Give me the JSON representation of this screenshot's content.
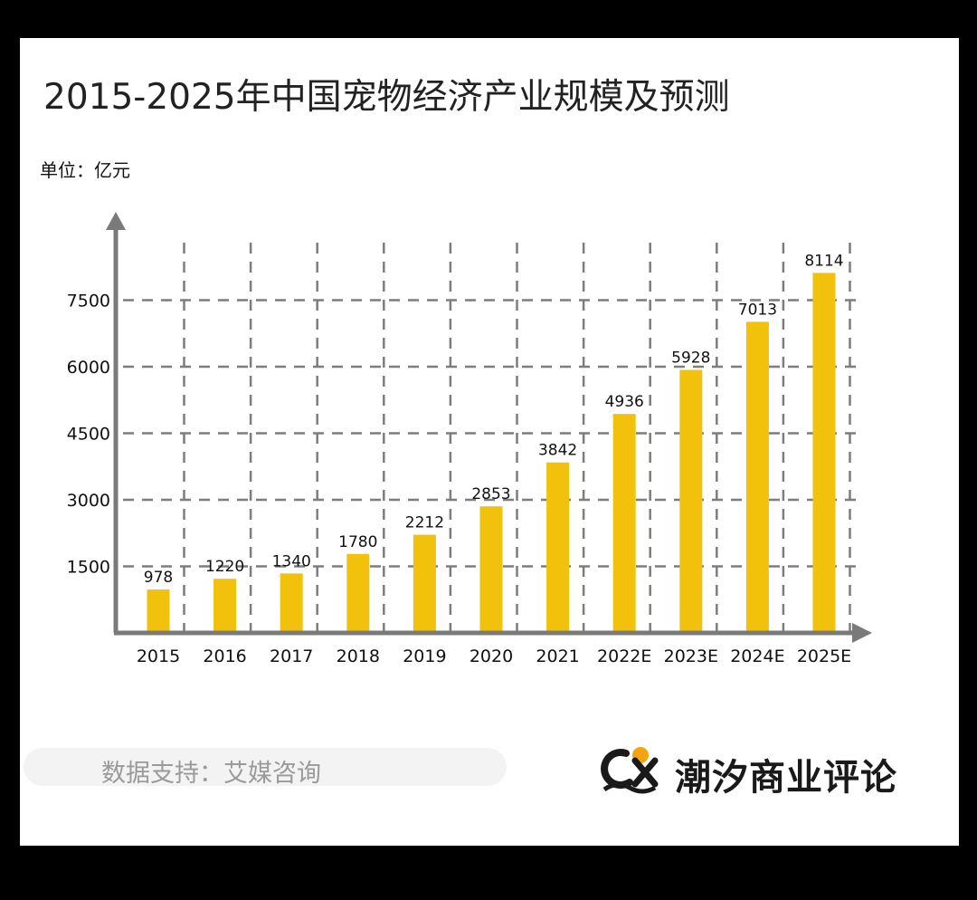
{
  "title": "2015-2025年中国宠物经济产业规模及预测",
  "unit_label": "单位：亿元",
  "source": "数据支持：艾媒咨询",
  "brand": {
    "initials": "CX",
    "name": "潮汐商业评论"
  },
  "colors": {
    "bar": "#f2c10c",
    "axis": "#7a7a7a",
    "grid": "#7d7d7d",
    "text": "#111111"
  },
  "chart_data": {
    "type": "bar",
    "title": "2015-2025年中国宠物经济产业规模及预测",
    "ylabel": "单位：亿元",
    "xlabel": "",
    "categories": [
      "2015",
      "2016",
      "2017",
      "2018",
      "2019",
      "2020",
      "2021",
      "2022E",
      "2023E",
      "2024E",
      "2025E"
    ],
    "values": [
      978,
      1220,
      1340,
      1780,
      2212,
      2853,
      3842,
      4936,
      5928,
      7013,
      8114
    ],
    "data_labels": [
      "978",
      "1220",
      "1340",
      "1780",
      "2212",
      "2853",
      "3842",
      "4936",
      "5928",
      "7013",
      "8114"
    ],
    "ylim": [
      0,
      8500
    ],
    "yticks": [
      "1500",
      "3000",
      "4500",
      "6000",
      "7500"
    ],
    "ytick_values": [
      1500,
      3000,
      4500,
      6000,
      7500
    ],
    "grid": true,
    "legend": "none"
  }
}
